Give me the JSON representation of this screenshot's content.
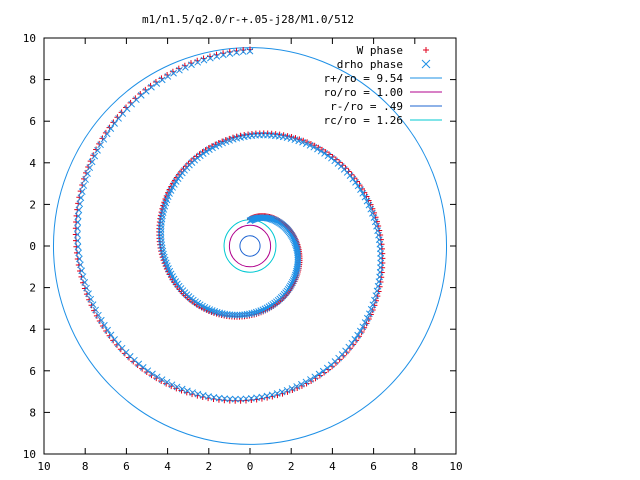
{
  "chart_data": {
    "type": "scatter",
    "title": "m1/n1.5/q2.0/r-+.05-j28/M1.0/512",
    "xlim": [
      -10,
      10
    ],
    "ylim": [
      -10,
      10
    ],
    "x_tick_labels": [
      "10",
      "8",
      "6",
      "4",
      "2",
      "0",
      "2",
      "4",
      "6",
      "8",
      "10"
    ],
    "y_tick_labels": [
      "10",
      "8",
      "6",
      "4",
      "2",
      "0",
      "2",
      "4",
      "6",
      "8",
      "10"
    ],
    "x_tick_values": [
      -10,
      -8,
      -6,
      -4,
      -2,
      0,
      2,
      4,
      6,
      8,
      10
    ],
    "y_tick_values": [
      10,
      8,
      6,
      4,
      2,
      0,
      -2,
      -4,
      -6,
      -8,
      -10
    ],
    "grid": false,
    "legend_position": "top-right",
    "spiral_series": [
      {
        "name": "W phase",
        "marker": "plus",
        "color": "#e0001c",
        "r_start": 1.3,
        "r_end": 9.45,
        "theta_start": 90,
        "turns": 2.0,
        "n": 360
      },
      {
        "name": "drho phase",
        "marker": "cross",
        "color": "#1e90e6",
        "r_start": 1.3,
        "r_end": 9.45,
        "theta_start": 90,
        "turns": 2.0,
        "n": 360
      }
    ],
    "circles": [
      {
        "name": "r+/ro = 9.54",
        "radius": 9.54,
        "color": "#1e90e6"
      },
      {
        "name": "ro/ro = 1.00",
        "radius": 1.0,
        "color": "#b0008c"
      },
      {
        "name": "r-/ro = .49",
        "radius": 0.49,
        "color": "#1e64d2"
      },
      {
        "name": "rc/ro = 1.26",
        "radius": 1.26,
        "color": "#00c8d2"
      }
    ]
  }
}
